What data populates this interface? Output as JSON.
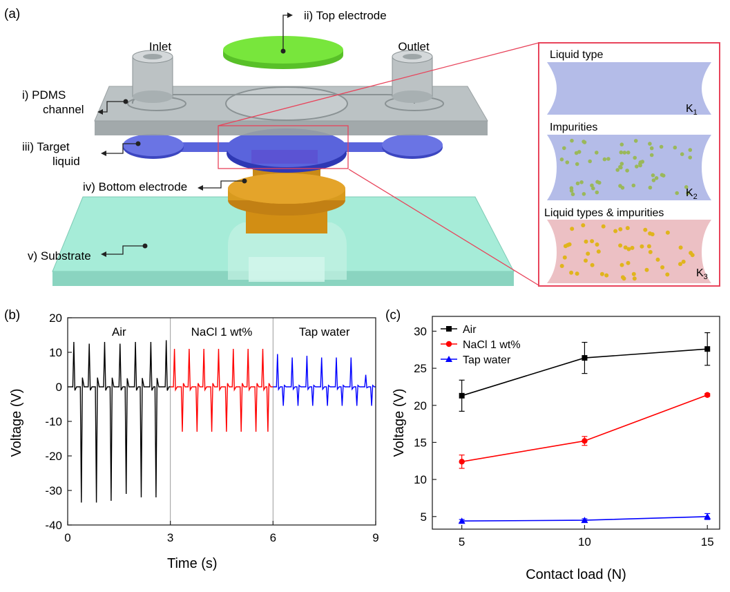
{
  "panel_a": {
    "label": "(a)",
    "callouts": {
      "top_electrode": "ii) Top electrode",
      "pdms_line1": "i) PDMS",
      "pdms_line2": "channel",
      "target_line1": "iii) Target",
      "target_line2": "liquid",
      "bottom_electrode": "iv) Bottom electrode",
      "substrate": "v) Substrate",
      "inlet": "Inlet",
      "outlet": "Outlet"
    },
    "inset": {
      "liquid_type": "Liquid type",
      "impurities": "Impurities",
      "liquid_types_impurities": "Liquid types & impurities",
      "k1": "K",
      "k1_sub": "1",
      "k2": "K",
      "k2_sub": "2",
      "k3": "K",
      "k3_sub": "3"
    },
    "colors": {
      "top_electrode": "#78e63c",
      "pdms": "#b4bcbe",
      "target_liquid": "#5a64dc",
      "bottom_electrode": "#d89a1e",
      "substrate": "#a6ecd8",
      "inset_border": "#e8435a",
      "inset_blue": "#b4bce8",
      "inset_pink": "#ecc0c4",
      "dot_green": "#9ab85a",
      "dot_yellow": "#e0b41c"
    }
  },
  "chart_data": [
    {
      "panel_label": "(b)",
      "type": "line",
      "xlabel": "Time (s)",
      "ylabel": "Voltage (V)",
      "xlim": [
        0,
        9
      ],
      "ylim": [
        -40,
        20
      ],
      "xticks": [
        0,
        3,
        6,
        9
      ],
      "yticks": [
        -40,
        -30,
        -20,
        -10,
        0,
        10,
        20
      ],
      "dividers": [
        3,
        6
      ],
      "series": [
        {
          "name": "Air",
          "color": "#000000",
          "x_range": [
            0,
            3
          ],
          "pulse_times": [
            0.18,
            0.63,
            1.08,
            1.53,
            1.98,
            2.43,
            2.88
          ],
          "positive_peaks": [
            13,
            12.5,
            13,
            12.5,
            13,
            13,
            13.5
          ],
          "negative_times": [
            0.4,
            0.84,
            1.27,
            1.71,
            2.15,
            2.58
          ],
          "negative_peaks": [
            -33.5,
            -33.5,
            -33,
            -31,
            -32,
            -32
          ]
        },
        {
          "name": "NaCl 1 wt%",
          "color": "#ff0000",
          "x_range": [
            3,
            6
          ],
          "pulse_times": [
            3.12,
            3.55,
            3.98,
            4.41,
            4.84,
            5.27,
            5.7
          ],
          "positive_peaks": [
            11,
            11,
            11,
            11,
            11,
            11,
            11
          ],
          "negative_times": [
            3.35,
            3.78,
            4.21,
            4.64,
            5.07,
            5.5,
            5.85
          ],
          "negative_peaks": [
            -13,
            -13,
            -13,
            -13,
            -13,
            -13,
            -13
          ]
        },
        {
          "name": "Tap water",
          "color": "#0000ff",
          "x_range": [
            6,
            9
          ],
          "pulse_times": [
            6.13,
            6.56,
            6.99,
            7.42,
            7.85,
            8.28,
            8.71
          ],
          "positive_peaks": [
            9.5,
            8.5,
            9,
            8.5,
            8.5,
            8.5,
            3.5
          ],
          "negative_times": [
            6.3,
            6.73,
            7.16,
            7.59,
            8.02,
            8.45,
            8.88
          ],
          "negative_peaks": [
            -5.5,
            -5.5,
            -5.5,
            -5.5,
            -5.5,
            -5.5,
            -5.5
          ]
        }
      ],
      "region_labels": [
        "Air",
        "NaCl 1 wt%",
        "Tap water"
      ]
    },
    {
      "panel_label": "(c)",
      "type": "line",
      "xlabel": "Contact load (N)",
      "ylabel": "Voltage (V)",
      "xlim": [
        3.8,
        15.5
      ],
      "ylim": [
        3.3,
        32
      ],
      "xticks": [
        5,
        10,
        15
      ],
      "yticks": [
        5,
        10,
        15,
        20,
        25,
        30
      ],
      "legend_position": "top-left",
      "x": [
        5,
        10,
        15
      ],
      "series": [
        {
          "name": "Air",
          "color": "#000000",
          "marker": "square",
          "values": [
            21.3,
            26.4,
            27.6
          ],
          "errors": [
            2.1,
            2.1,
            2.2
          ]
        },
        {
          "name": "NaCl 1 wt%",
          "color": "#ff0000",
          "marker": "circle",
          "values": [
            12.4,
            15.2,
            21.4
          ],
          "errors": [
            0.9,
            0.6,
            0.2
          ]
        },
        {
          "name": "Tap water",
          "color": "#0000ff",
          "marker": "triangle",
          "values": [
            4.4,
            4.5,
            5.0
          ],
          "errors": [
            0.2,
            0.2,
            0.4
          ]
        }
      ]
    }
  ]
}
